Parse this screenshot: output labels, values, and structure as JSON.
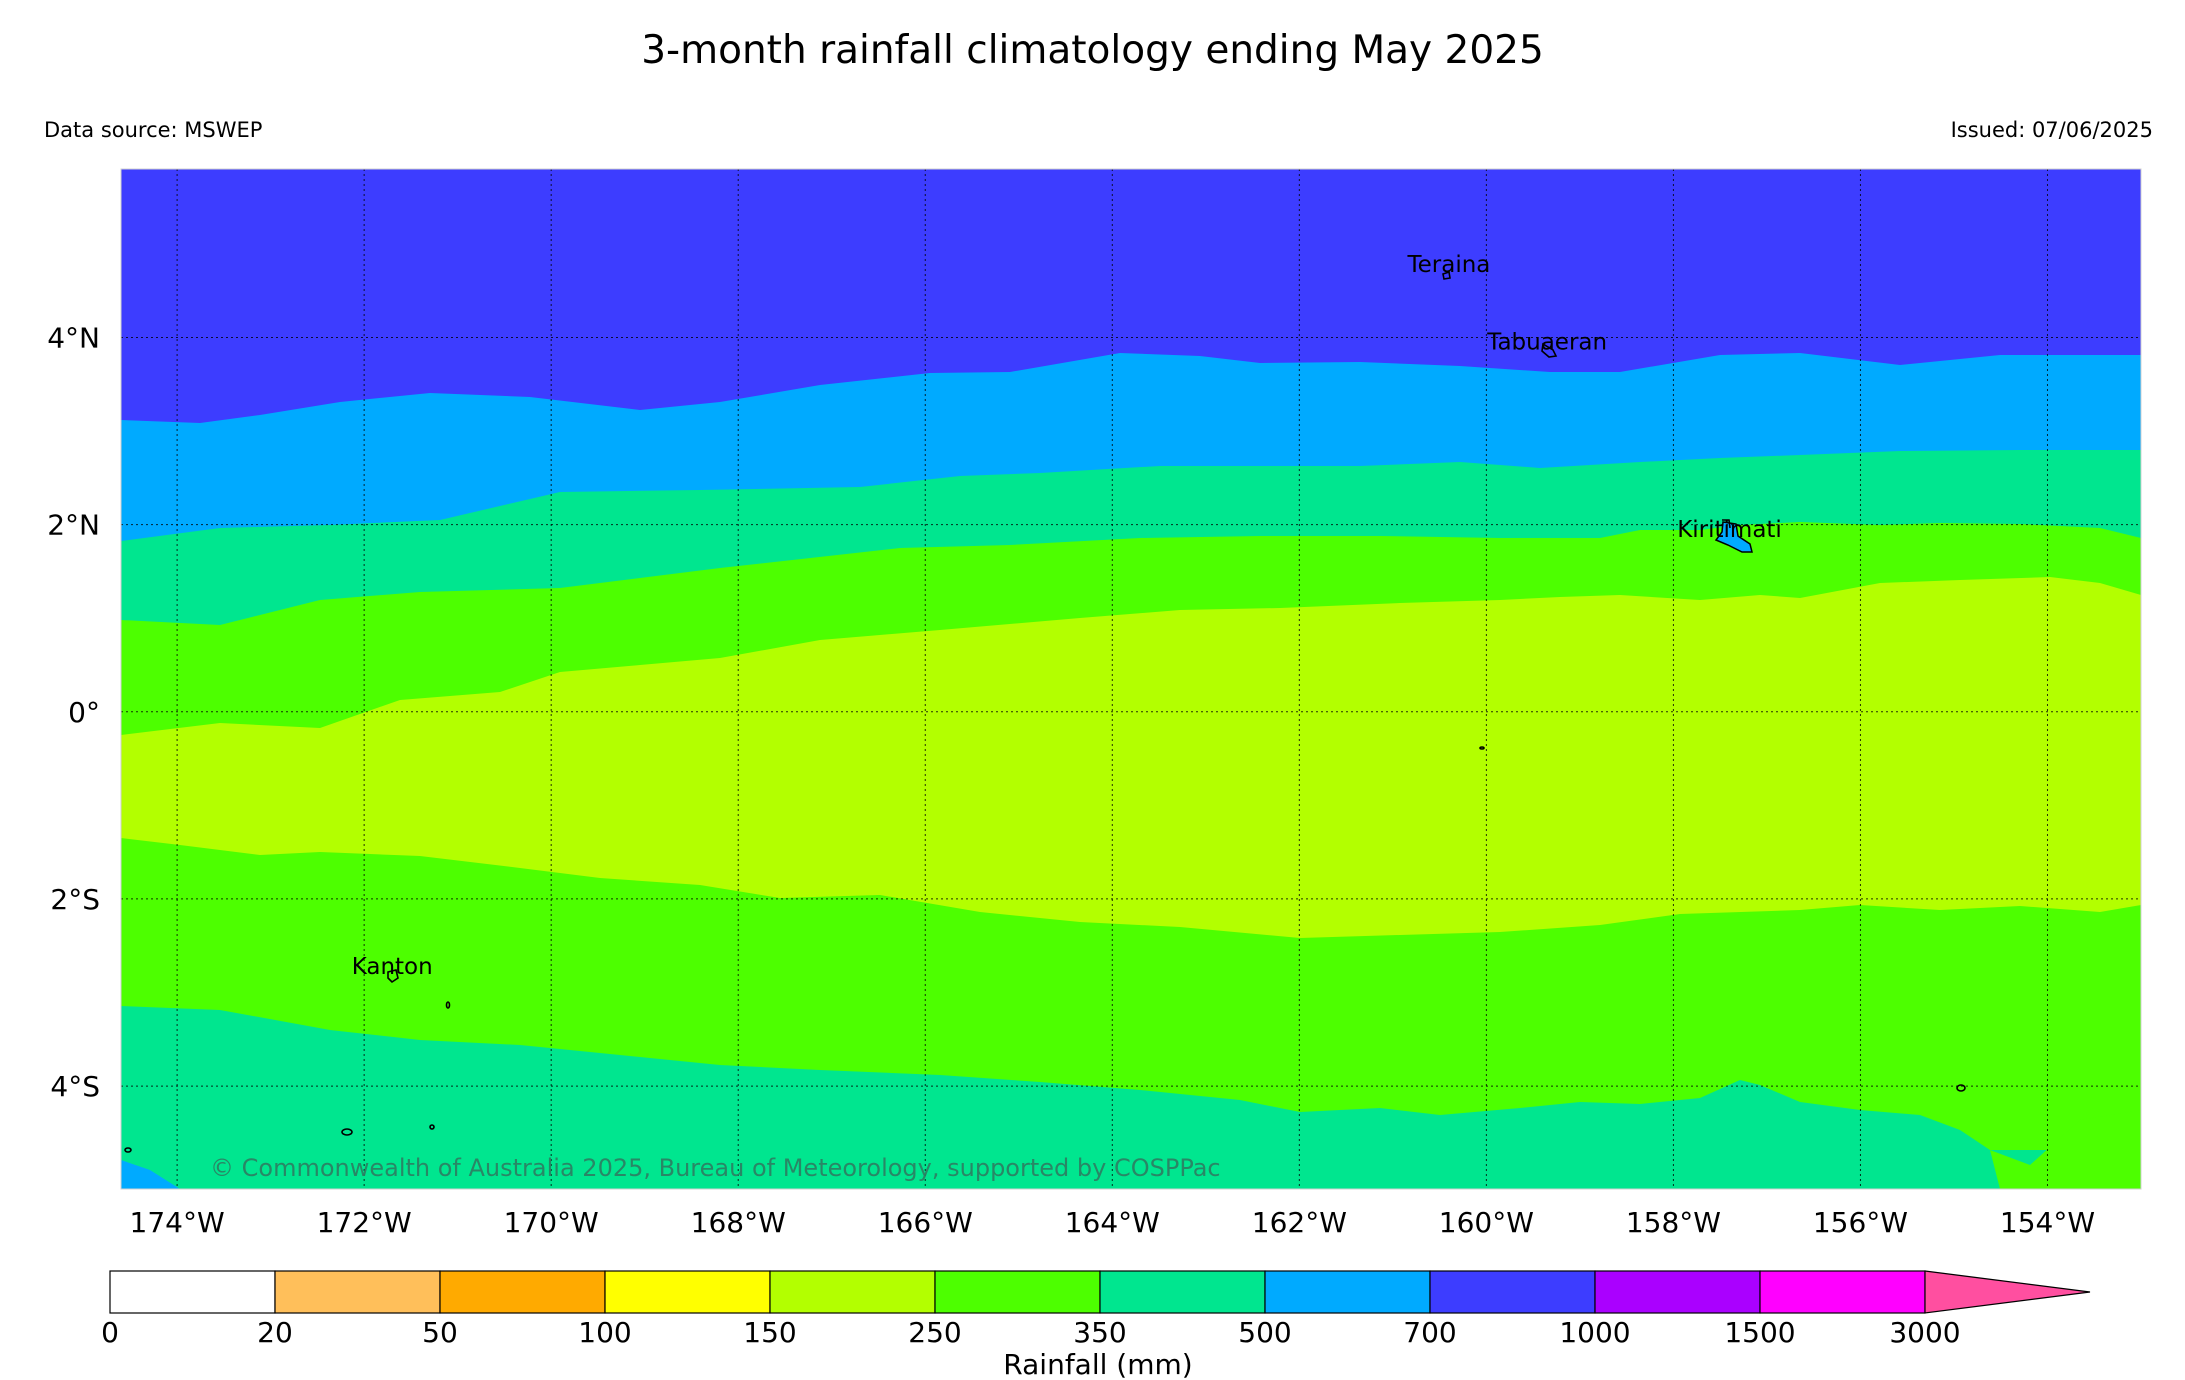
{
  "header": {
    "title": "3-month rainfall climatology ending May 2025",
    "source": "Data source: MSWEP",
    "issued": "Issued: 07/06/2025"
  },
  "map": {
    "lon_range": [
      -174.6,
      -153.0
    ],
    "lat_range": [
      -5.1,
      5.8
    ],
    "lon_ticks": [
      {
        "value": -174,
        "label": "174°W"
      },
      {
        "value": -172,
        "label": "172°W"
      },
      {
        "value": -170,
        "label": "170°W"
      },
      {
        "value": -168,
        "label": "168°W"
      },
      {
        "value": -166,
        "label": "166°W"
      },
      {
        "value": -164,
        "label": "164°W"
      },
      {
        "value": -162,
        "label": "162°W"
      },
      {
        "value": -160,
        "label": "160°W"
      },
      {
        "value": -158,
        "label": "158°W"
      },
      {
        "value": -156,
        "label": "156°W"
      },
      {
        "value": -154,
        "label": "154°W"
      }
    ],
    "lat_ticks": [
      {
        "value": 4,
        "label": "4°N"
      },
      {
        "value": 2,
        "label": "2°N"
      },
      {
        "value": 0,
        "label": "0°"
      },
      {
        "value": -2,
        "label": "2°S"
      },
      {
        "value": -4,
        "label": "4°S"
      }
    ],
    "places": [
      {
        "name": "Teraina",
        "lon": -160.4,
        "lat": 4.7
      },
      {
        "name": "Tabuaeran",
        "lon": -159.35,
        "lat": 3.87
      },
      {
        "name": "Kiritimati",
        "lon": -157.4,
        "lat": 1.87
      },
      {
        "name": "Kanton",
        "lon": -171.7,
        "lat": -2.8
      }
    ],
    "grid": true,
    "copyright": "© Commonwealth of Australia 2025, Bureau of Meteorology, supported by COSPPac"
  },
  "colorbar": {
    "label": "Rainfall (mm)",
    "bins": [
      {
        "from": "0",
        "to": "20",
        "color": "#ffffff"
      },
      {
        "from": "20",
        "to": "50",
        "color": "#ffbf5a"
      },
      {
        "from": "50",
        "to": "100",
        "color": "#ffaa00"
      },
      {
        "from": "100",
        "to": "150",
        "color": "#ffff00"
      },
      {
        "from": "150",
        "to": "250",
        "color": "#b3ff00"
      },
      {
        "from": "250",
        "to": "350",
        "color": "#4dff00"
      },
      {
        "from": "350",
        "to": "500",
        "color": "#00e68f"
      },
      {
        "from": "500",
        "to": "700",
        "color": "#00aaff"
      },
      {
        "from": "700",
        "to": "1000",
        "color": "#3d3dff"
      },
      {
        "from": "1000",
        "to": "1500",
        "color": "#aa00ff"
      },
      {
        "from": "1500",
        "to": "3000",
        "color": "#ff00ff"
      }
    ],
    "extend_color": "#ff4fa0",
    "tick_labels": [
      "0",
      "20",
      "50",
      "100",
      "150",
      "250",
      "350",
      "500",
      "700",
      "1000",
      "1500",
      "3000"
    ]
  }
}
